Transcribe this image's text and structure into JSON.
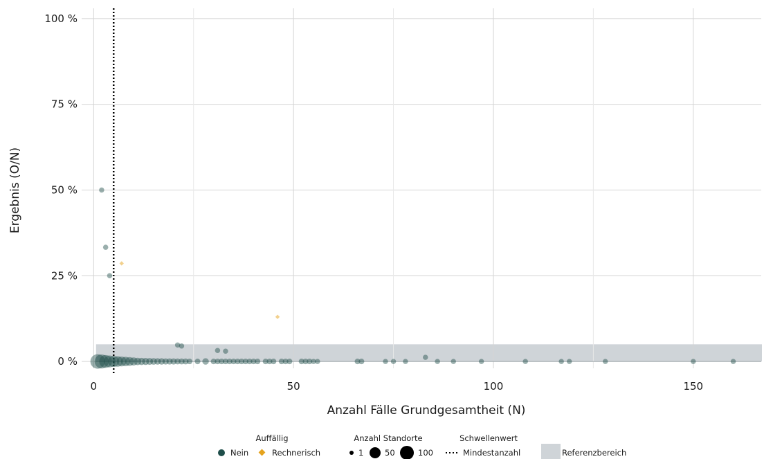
{
  "colors": {
    "nein": "#1f4e4a",
    "rechnerisch": "#e5a31e",
    "reference_band": "#cfd4d8",
    "grid": "#d4d4d4",
    "threshold": "#000000"
  },
  "chart_data": {
    "type": "scatter",
    "xlabel": "Anzahl Fälle Grundgesamtheit (N)",
    "ylabel": "Ergebnis (O/N)",
    "xlim": [
      -3,
      167
    ],
    "ylim": [
      -2,
      103
    ],
    "x_ticks": [
      0,
      50,
      100,
      150
    ],
    "x_tick_labels": [
      "0",
      "50",
      "100",
      "150"
    ],
    "y_ticks": [
      0,
      25,
      50,
      75,
      100
    ],
    "y_tick_labels": [
      "0 %",
      "25 %",
      "50 %",
      "75 %",
      "100 %"
    ],
    "grid": true,
    "threshold": {
      "name": "Mindestanzahl",
      "x": 5,
      "style": "dotted"
    },
    "reference_range": {
      "name": "Referenzbereich",
      "y_from": 0,
      "y_to": 5
    },
    "series": [
      {
        "name": "Nein",
        "marker": "circle",
        "points": [
          {
            "x": 1,
            "y": 0,
            "count": 100
          },
          {
            "x": 2,
            "y": 0,
            "count": 90
          },
          {
            "x": 3,
            "y": 0,
            "count": 70
          },
          {
            "x": 4,
            "y": 0,
            "count": 55
          },
          {
            "x": 5,
            "y": 0,
            "count": 45
          },
          {
            "x": 6,
            "y": 0,
            "count": 38
          },
          {
            "x": 7,
            "y": 0,
            "count": 30
          },
          {
            "x": 8,
            "y": 0,
            "count": 25
          },
          {
            "x": 9,
            "y": 0,
            "count": 20
          },
          {
            "x": 10,
            "y": 0,
            "count": 15
          },
          {
            "x": 11,
            "y": 0,
            "count": 10
          },
          {
            "x": 12,
            "y": 0,
            "count": 9
          },
          {
            "x": 13,
            "y": 0,
            "count": 8
          },
          {
            "x": 14,
            "y": 0,
            "count": 7
          },
          {
            "x": 15,
            "y": 0,
            "count": 6
          },
          {
            "x": 16,
            "y": 0,
            "count": 5
          },
          {
            "x": 17,
            "y": 0,
            "count": 5
          },
          {
            "x": 18,
            "y": 0,
            "count": 4
          },
          {
            "x": 19,
            "y": 0,
            "count": 4
          },
          {
            "x": 20,
            "y": 0,
            "count": 4
          },
          {
            "x": 21,
            "y": 0,
            "count": 3
          },
          {
            "x": 22,
            "y": 0,
            "count": 3
          },
          {
            "x": 23,
            "y": 0,
            "count": 3
          },
          {
            "x": 24,
            "y": 0,
            "count": 2
          },
          {
            "x": 26,
            "y": 0,
            "count": 2
          },
          {
            "x": 28,
            "y": 0,
            "count": 5
          },
          {
            "x": 30,
            "y": 0,
            "count": 2
          },
          {
            "x": 31,
            "y": 0,
            "count": 2
          },
          {
            "x": 32,
            "y": 0,
            "count": 2
          },
          {
            "x": 33,
            "y": 0,
            "count": 2
          },
          {
            "x": 34,
            "y": 0,
            "count": 2
          },
          {
            "x": 35,
            "y": 0,
            "count": 2
          },
          {
            "x": 36,
            "y": 0,
            "count": 2
          },
          {
            "x": 37,
            "y": 0,
            "count": 2
          },
          {
            "x": 38,
            "y": 0,
            "count": 2
          },
          {
            "x": 39,
            "y": 0,
            "count": 2
          },
          {
            "x": 40,
            "y": 0,
            "count": 2
          },
          {
            "x": 41,
            "y": 0,
            "count": 2
          },
          {
            "x": 43,
            "y": 0,
            "count": 2
          },
          {
            "x": 44,
            "y": 0,
            "count": 2
          },
          {
            "x": 45,
            "y": 0,
            "count": 2
          },
          {
            "x": 47,
            "y": 0,
            "count": 2
          },
          {
            "x": 48,
            "y": 0,
            "count": 2
          },
          {
            "x": 49,
            "y": 0,
            "count": 2
          },
          {
            "x": 52,
            "y": 0,
            "count": 2
          },
          {
            "x": 53,
            "y": 0,
            "count": 2
          },
          {
            "x": 54,
            "y": 0,
            "count": 2
          },
          {
            "x": 55,
            "y": 0,
            "count": 1
          },
          {
            "x": 56,
            "y": 0,
            "count": 1
          },
          {
            "x": 66,
            "y": 0,
            "count": 2
          },
          {
            "x": 67,
            "y": 0,
            "count": 2
          },
          {
            "x": 73,
            "y": 0,
            "count": 1
          },
          {
            "x": 75,
            "y": 0,
            "count": 1
          },
          {
            "x": 78,
            "y": 0,
            "count": 1
          },
          {
            "x": 86,
            "y": 0,
            "count": 1
          },
          {
            "x": 90,
            "y": 0,
            "count": 1
          },
          {
            "x": 97,
            "y": 0,
            "count": 1
          },
          {
            "x": 108,
            "y": 0,
            "count": 1
          },
          {
            "x": 117,
            "y": 0,
            "count": 1
          },
          {
            "x": 119,
            "y": 0,
            "count": 1
          },
          {
            "x": 128,
            "y": 0,
            "count": 1
          },
          {
            "x": 150,
            "y": 0,
            "count": 1
          },
          {
            "x": 160,
            "y": 0,
            "count": 1
          },
          {
            "x": 2,
            "y": 50,
            "count": 1
          },
          {
            "x": 3,
            "y": 33.3,
            "count": 1
          },
          {
            "x": 4,
            "y": 25,
            "count": 1
          },
          {
            "x": 21,
            "y": 4.8,
            "count": 1
          },
          {
            "x": 22,
            "y": 4.5,
            "count": 1
          },
          {
            "x": 31,
            "y": 3.2,
            "count": 1
          },
          {
            "x": 33,
            "y": 3.0,
            "count": 1
          },
          {
            "x": 83,
            "y": 1.2,
            "count": 1
          }
        ]
      },
      {
        "name": "Rechnerisch",
        "marker": "diamond",
        "points": [
          {
            "x": 7,
            "y": 28.6,
            "count": 1
          },
          {
            "x": 46,
            "y": 13.0,
            "count": 1
          }
        ]
      }
    ],
    "legend": {
      "placement": "bottom",
      "groups": [
        {
          "title": "Auffällig",
          "items": [
            "Nein",
            "Rechnerisch"
          ]
        },
        {
          "title": "Anzahl Standorte",
          "items": [
            "1",
            "50",
            "100"
          ]
        },
        {
          "title": "Schwellenwert",
          "items": [
            "Mindestanzahl"
          ]
        },
        {
          "title": "",
          "items": [
            "Referenzbereich"
          ]
        }
      ]
    }
  }
}
